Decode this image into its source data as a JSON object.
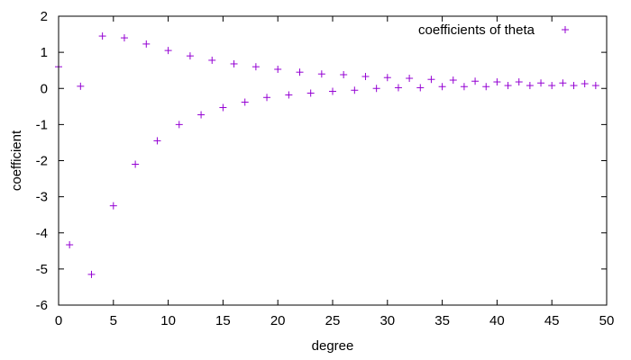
{
  "chart_data": {
    "type": "scatter",
    "title": "",
    "xlabel": "degree",
    "ylabel": "coefficient",
    "xlim": [
      0,
      50
    ],
    "ylim": [
      -6,
      2
    ],
    "xticks": [
      0,
      5,
      10,
      15,
      20,
      25,
      30,
      35,
      40,
      45,
      50
    ],
    "yticks": [
      -6,
      -5,
      -4,
      -3,
      -2,
      -1,
      0,
      1,
      2
    ],
    "grid": false,
    "legend_position": "top-right",
    "colors": {
      "series": "#9400d3",
      "axis": "#000000",
      "background": "#ffffff"
    },
    "series": [
      {
        "name": "coefficients of theta",
        "marker": "plus",
        "x": [
          0,
          1,
          2,
          3,
          4,
          5,
          6,
          7,
          8,
          9,
          10,
          11,
          12,
          13,
          14,
          15,
          16,
          17,
          18,
          19,
          20,
          21,
          22,
          23,
          24,
          25,
          26,
          27,
          28,
          29,
          30,
          31,
          32,
          33,
          34,
          35,
          36,
          37,
          38,
          39,
          40,
          41,
          42,
          43,
          44,
          45,
          46,
          47,
          48,
          49
        ],
        "y": [
          0.6,
          -4.33,
          0.06,
          -5.15,
          1.45,
          -3.25,
          1.4,
          -2.1,
          1.23,
          -1.45,
          1.05,
          -1.0,
          0.9,
          -0.73,
          0.78,
          -0.53,
          0.68,
          -0.38,
          0.6,
          -0.25,
          0.53,
          -0.18,
          0.45,
          -0.13,
          0.4,
          -0.08,
          0.38,
          -0.05,
          0.33,
          0.0,
          0.3,
          0.02,
          0.28,
          0.02,
          0.25,
          0.05,
          0.23,
          0.05,
          0.2,
          0.05,
          0.18,
          0.08,
          0.18,
          0.08,
          0.15,
          0.08,
          0.15,
          0.08,
          0.13,
          0.08
        ]
      }
    ]
  }
}
